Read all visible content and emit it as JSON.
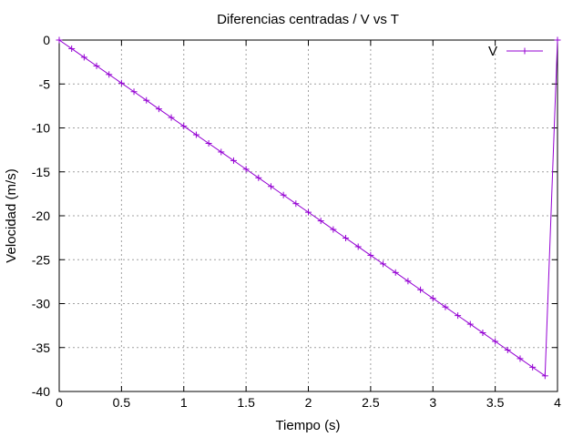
{
  "chart_data": {
    "type": "line",
    "title": "Diferencias centradas / V vs T",
    "xlabel": "Tiempo (s)",
    "ylabel": "Velocidad (m/s)",
    "xlim": [
      0,
      4
    ],
    "ylim": [
      -40,
      0
    ],
    "xticks": [
      "0",
      "0.5",
      "1",
      "1.5",
      "2",
      "2.5",
      "3",
      "3.5",
      "4"
    ],
    "yticks": [
      "0",
      "-5",
      "-10",
      "-15",
      "-20",
      "-25",
      "-30",
      "-35",
      "-40"
    ],
    "grid": true,
    "legend_position": "top-right",
    "series": [
      {
        "name": "V",
        "color": "#9400d3",
        "marker": "plus",
        "x": [
          0,
          0.1,
          0.2,
          0.3,
          0.4,
          0.5,
          0.6,
          0.7,
          0.8,
          0.9,
          1.0,
          1.1,
          1.2,
          1.3,
          1.4,
          1.5,
          1.6,
          1.7,
          1.8,
          1.9,
          2.0,
          2.1,
          2.2,
          2.3,
          2.4,
          2.5,
          2.6,
          2.7,
          2.8,
          2.9,
          3.0,
          3.1,
          3.2,
          3.3,
          3.4,
          3.5,
          3.6,
          3.7,
          3.8,
          3.9,
          4.0
        ],
        "y": [
          0,
          -0.98,
          -1.96,
          -2.94,
          -3.92,
          -4.9,
          -5.88,
          -6.86,
          -7.84,
          -8.82,
          -9.8,
          -10.78,
          -11.76,
          -12.74,
          -13.72,
          -14.7,
          -15.68,
          -16.66,
          -17.64,
          -18.62,
          -19.6,
          -20.58,
          -21.56,
          -22.54,
          -23.52,
          -24.5,
          -25.48,
          -26.46,
          -27.44,
          -28.42,
          -29.4,
          -30.38,
          -31.36,
          -32.34,
          -33.32,
          -34.3,
          -35.28,
          -36.26,
          -37.24,
          -38.22,
          0
        ]
      }
    ]
  }
}
